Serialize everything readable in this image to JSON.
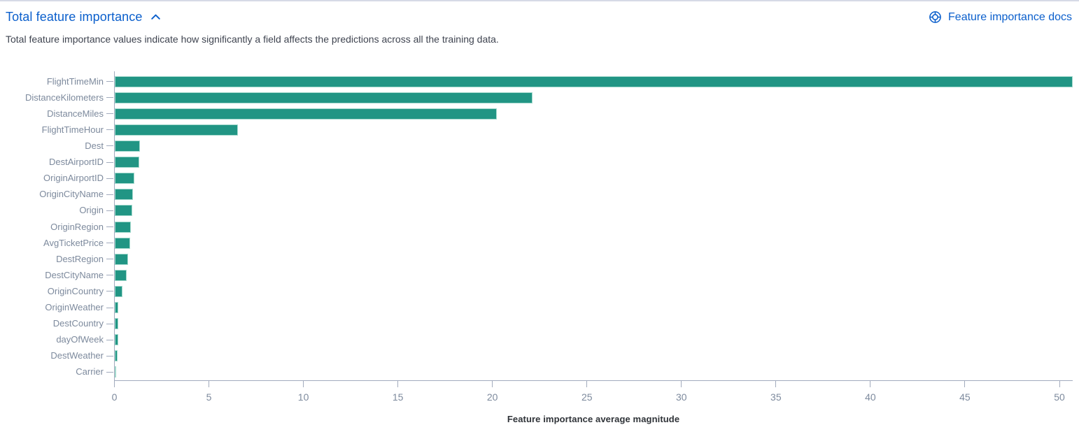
{
  "header": {
    "title": "Total feature importance",
    "collapse_icon": "chevron-up-icon",
    "docs_icon": "life-ring-icon",
    "docs_link_label": "Feature importance docs",
    "description": "Total feature importance values indicate how significantly a field affects the predictions across all the training data."
  },
  "colors": {
    "link_blue": "#0b5fcc",
    "bar_fill": "#219584",
    "bar_border": "#a3d9cd",
    "axis_line": "#a2abbd",
    "tick_label": "#7d8a9d",
    "text_dark": "#3f4450"
  },
  "chart_data": {
    "type": "bar",
    "orientation": "horizontal",
    "title": "Total feature importance",
    "xlabel": "Feature importance average magnitude",
    "ylabel": "",
    "grid": false,
    "legend": "none",
    "categories": [
      "FlightTimeMin",
      "DistanceKilometers",
      "DistanceMiles",
      "FlightTimeHour",
      "Dest",
      "DestAirportID",
      "OriginAirportID",
      "OriginCityName",
      "Origin",
      "OriginRegion",
      "AvgTicketPrice",
      "DestRegion",
      "DestCityName",
      "OriginCountry",
      "OriginWeather",
      "DestCountry",
      "dayOfWeek",
      "DestWeather",
      "Carrier"
    ],
    "values": [
      50.7,
      22.1,
      20.2,
      6.5,
      1.32,
      1.29,
      1.03,
      0.95,
      0.91,
      0.85,
      0.83,
      0.72,
      0.62,
      0.4,
      0.2,
      0.17,
      0.17,
      0.14,
      0.05
    ],
    "xlim": [
      0,
      50.7
    ],
    "xticks": [
      0,
      5,
      10,
      15,
      20,
      25,
      30,
      35,
      40,
      45,
      50
    ]
  }
}
